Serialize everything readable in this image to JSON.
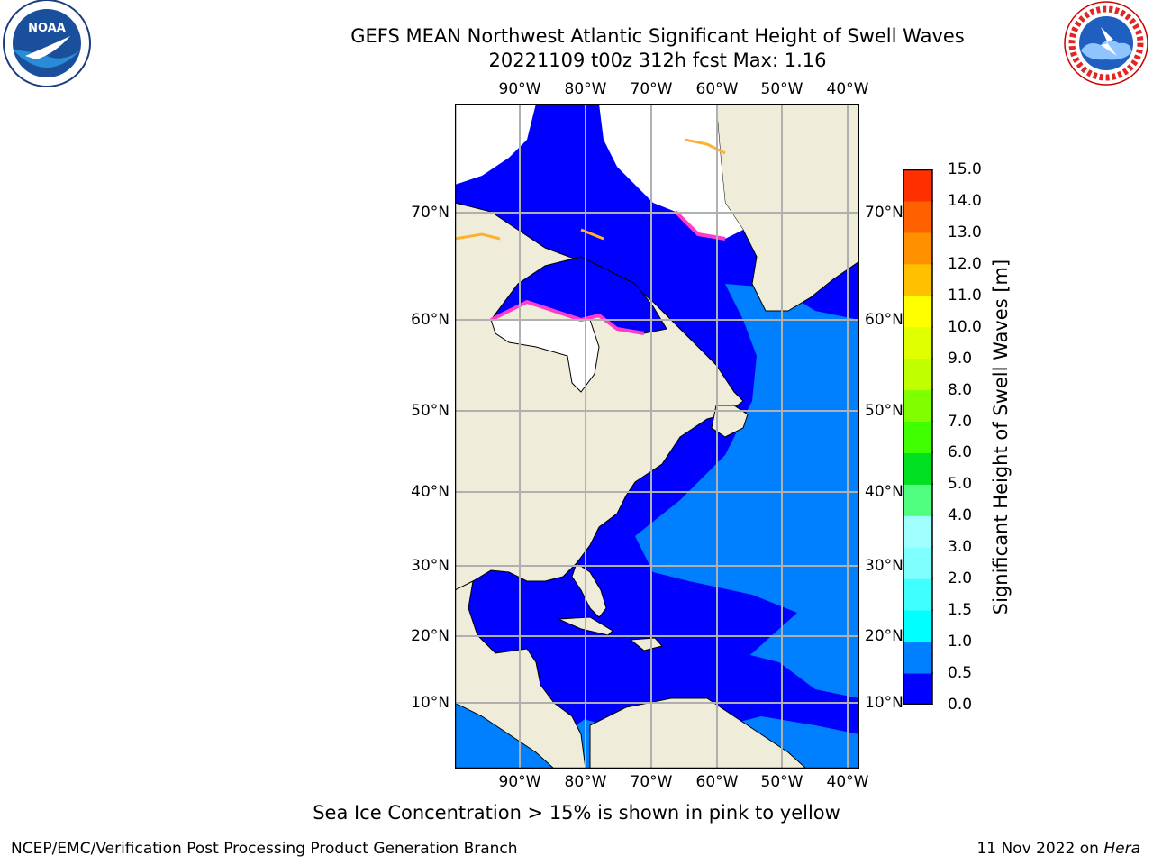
{
  "title": {
    "line1": "GEFS MEAN Northwest Atlantic Significant Height of Swell Waves",
    "line2": "20221109 t00z 312h fcst   Max: 1.16"
  },
  "map": {
    "lon_ticks_top": [
      "90°W",
      "80°W",
      "70°W",
      "60°W",
      "50°W",
      "40°W"
    ],
    "lon_ticks_bottom": [
      "90°W",
      "80°W",
      "70°W",
      "60°W",
      "50°W",
      "40°W"
    ],
    "lat_ticks_left": [
      "70°N",
      "60°N",
      "50°N",
      "40°N",
      "30°N",
      "20°N",
      "10°N"
    ],
    "lat_ticks_right": [
      "70°N",
      "60°N",
      "50°N",
      "40°N",
      "30°N",
      "20°N",
      "10°N"
    ],
    "colors": {
      "land": "#efedd9",
      "ice_free_ocean_low": "#0000ff",
      "ocean_mid": "#0080ff",
      "ice": "#ffffff",
      "grid": "#b0b0b0"
    }
  },
  "colorbar": {
    "label": "Significant Height of Swell Waves [m]",
    "ticks": [
      "0.0",
      "0.5",
      "1.0",
      "1.5",
      "2.0",
      "3.0",
      "4.0",
      "5.0",
      "6.0",
      "7.0",
      "8.0",
      "9.0",
      "10.0",
      "11.0",
      "12.0",
      "13.0",
      "14.0",
      "15.0"
    ],
    "colors": [
      "#0000ff",
      "#0080ff",
      "#00ffff",
      "#40ffff",
      "#80ffff",
      "#a0ffff",
      "#50ff80",
      "#00e020",
      "#40ff00",
      "#80ff00",
      "#c0ff00",
      "#e0ff00",
      "#ffff00",
      "#ffc000",
      "#ff9000",
      "#ff6000",
      "#ff3000",
      "#ff0000"
    ]
  },
  "footnote": "Sea Ice Concentration > 15% is shown in pink to yellow",
  "credit": "NCEP/EMC/Verification Post Processing Product Generation Branch",
  "date": {
    "text": "11 Nov 2022 on ",
    "host": "Hera"
  },
  "logos": {
    "left": "NOAA",
    "right": "NATIONAL WEATHER SERVICE"
  }
}
